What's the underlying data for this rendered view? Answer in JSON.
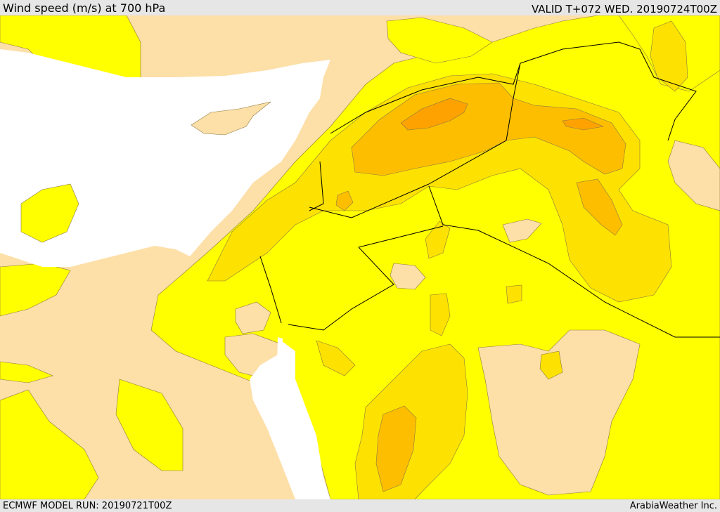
{
  "header": {
    "title": "Wind speed (m/s) at 700 hPa",
    "valid": "VALID T+072 WED. 20190724T00Z"
  },
  "footer": {
    "model_run": "ECMWF MODEL RUN: 20190721T00Z",
    "credit": "ArabiaWeather Inc."
  },
  "map": {
    "colors": {
      "sea": "#ffffff",
      "land_calm": "#fddfa8",
      "wind_low": "#ffff00",
      "wind_mid": "#fde100",
      "wind_high": "#fdbe00",
      "wind_peak": "#fda200",
      "border": "#000000"
    }
  }
}
